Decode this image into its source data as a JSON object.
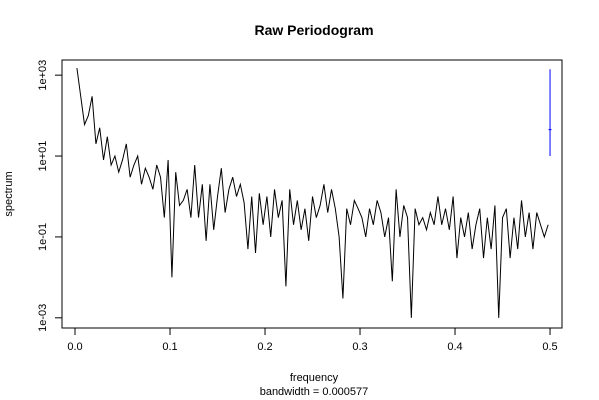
{
  "chart_data": {
    "type": "line",
    "title": "Raw Periodogram",
    "x_label": "frequency",
    "y_label": "spectrum",
    "subtitle": "bandwidth = 0.000577",
    "log_y": true,
    "color": "#000000",
    "x": [
      0.002,
      0.006,
      0.01,
      0.014,
      0.018,
      0.022,
      0.026,
      0.03,
      0.034,
      0.038,
      0.042,
      0.046,
      0.05,
      0.054,
      0.058,
      0.062,
      0.066,
      0.07,
      0.074,
      0.078,
      0.082,
      0.086,
      0.09,
      0.094,
      0.098,
      0.102,
      0.106,
      0.11,
      0.114,
      0.118,
      0.122,
      0.126,
      0.13,
      0.134,
      0.138,
      0.142,
      0.146,
      0.15,
      0.154,
      0.158,
      0.162,
      0.166,
      0.17,
      0.174,
      0.178,
      0.182,
      0.186,
      0.19,
      0.194,
      0.198,
      0.202,
      0.206,
      0.21,
      0.214,
      0.218,
      0.222,
      0.226,
      0.23,
      0.234,
      0.238,
      0.242,
      0.246,
      0.25,
      0.254,
      0.258,
      0.262,
      0.266,
      0.27,
      0.274,
      0.278,
      0.282,
      0.286,
      0.29,
      0.294,
      0.298,
      0.302,
      0.306,
      0.31,
      0.314,
      0.318,
      0.322,
      0.326,
      0.33,
      0.334,
      0.338,
      0.342,
      0.346,
      0.35,
      0.354,
      0.358,
      0.362,
      0.366,
      0.37,
      0.374,
      0.378,
      0.382,
      0.386,
      0.39,
      0.394,
      0.398,
      0.402,
      0.406,
      0.41,
      0.414,
      0.418,
      0.422,
      0.426,
      0.43,
      0.434,
      0.438,
      0.442,
      0.446,
      0.45,
      0.454,
      0.458,
      0.462,
      0.466,
      0.47,
      0.474,
      0.478,
      0.482,
      0.486,
      0.49,
      0.494,
      0.498
    ],
    "values": [
      1500,
      300,
      60,
      100,
      300,
      20,
      50,
      8,
      30,
      6,
      10,
      4,
      8,
      20,
      3,
      6,
      10,
      2,
      5,
      3,
      1.5,
      6,
      3,
      0.3,
      8,
      0.01,
      4,
      0.6,
      0.8,
      1.5,
      0.3,
      6,
      0.3,
      2,
      0.08,
      2,
      0.15,
      1,
      5,
      0.4,
      1.5,
      3,
      1,
      2,
      0.7,
      0.05,
      1,
      0.04,
      1.2,
      0.2,
      1,
      0.1,
      1.5,
      0.3,
      0.8,
      0.006,
      1.5,
      0.2,
      0.8,
      0.15,
      0.5,
      0.08,
      1,
      0.3,
      0.6,
      2,
      0.4,
      1.5,
      0.5,
      0.1,
      0.003,
      0.5,
      0.2,
      0.8,
      0.5,
      0.3,
      0.1,
      0.5,
      0.2,
      0.8,
      0.4,
      0.1,
      0.3,
      0.008,
      1.5,
      0.1,
      0.6,
      0.3,
      0.001,
      0.5,
      0.2,
      0.3,
      0.15,
      0.4,
      0.2,
      1,
      0.2,
      0.5,
      0.15,
      1,
      0.03,
      0.3,
      0.1,
      0.4,
      0.05,
      0.2,
      0.5,
      0.03,
      0.3,
      0.05,
      0.6,
      0.001,
      0.3,
      0.5,
      0.03,
      0.3,
      0.05,
      0.8,
      0.1,
      0.4,
      0.05,
      0.4,
      0.2,
      0.1,
      0.2
    ],
    "confidence_bar": {
      "x": 0.5,
      "low": 10,
      "mid": 45,
      "high": 1400,
      "color": "#0000ff"
    },
    "xlim": [
      -0.0137,
      0.5126
    ],
    "ylim": [
      0.00056,
      2370
    ],
    "xticks": [
      {
        "value": 0,
        "label": "0.0"
      },
      0.1,
      0.2,
      0.3,
      0.4,
      0.5
    ],
    "yticks": [
      {
        "value": 0.001,
        "label": "1e-03"
      },
      {
        "value": 0.1,
        "label": "1e-01"
      },
      {
        "value": 10,
        "label": "1e+01"
      },
      {
        "value": 1000,
        "label": "1e+03"
      }
    ]
  }
}
